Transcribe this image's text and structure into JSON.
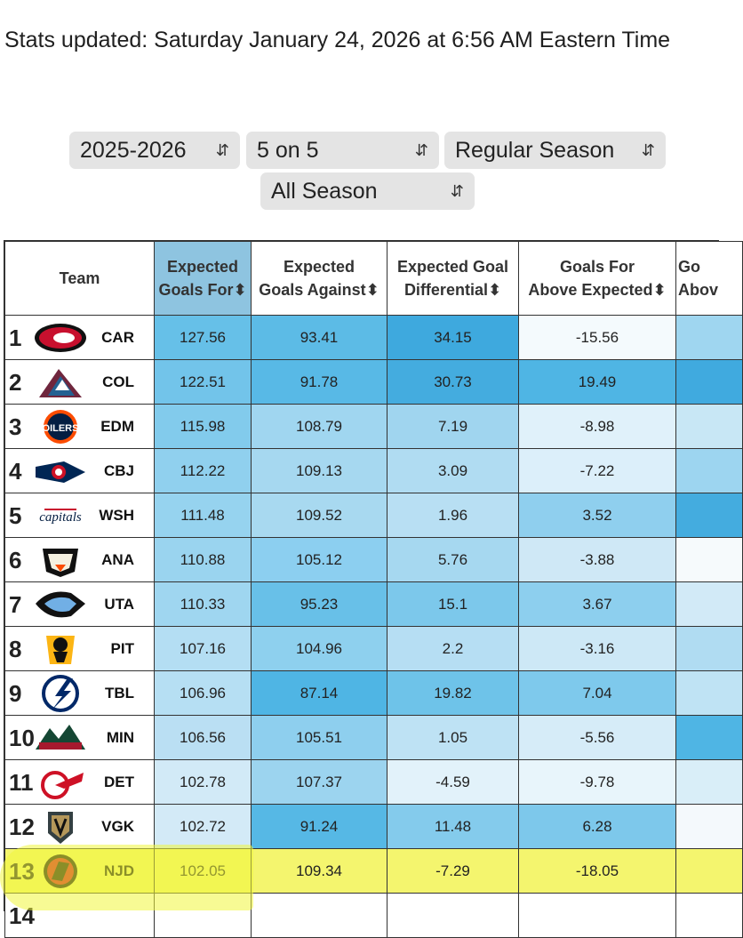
{
  "stats_updated": "Stats updated: Saturday January 24, 2026 at 6:56 AM Eastern Time",
  "filters": {
    "season": "2025-2026",
    "strength": "5 on 5",
    "season_type": "Regular Season",
    "span": "All Season",
    "chevron_icon": "up-down-chevron-icon"
  },
  "table": {
    "headers": [
      {
        "line1": "",
        "line2": "Team",
        "single": true
      },
      {
        "line1": "Expected",
        "line2": "Goals For⬍"
      },
      {
        "line1": "Expected",
        "line2": "Goals Against⬍"
      },
      {
        "line1": "Expected Goal",
        "line2": "Differential⬍"
      },
      {
        "line1": "Goals For",
        "line2": "Above Expected⬍"
      },
      {
        "line1": "Go",
        "line2": "Abov"
      }
    ],
    "rows": [
      {
        "rank": "1",
        "abbr": "CAR",
        "xgf": "127.56",
        "xga": "93.41",
        "xgd": "34.15",
        "gfax": "-15.56"
      },
      {
        "rank": "2",
        "abbr": "COL",
        "xgf": "122.51",
        "xga": "91.78",
        "xgd": "30.73",
        "gfax": "19.49"
      },
      {
        "rank": "3",
        "abbr": "EDM",
        "xgf": "115.98",
        "xga": "108.79",
        "xgd": "7.19",
        "gfax": "-8.98"
      },
      {
        "rank": "4",
        "abbr": "CBJ",
        "xgf": "112.22",
        "xga": "109.13",
        "xgd": "3.09",
        "gfax": "-7.22"
      },
      {
        "rank": "5",
        "abbr": "WSH",
        "xgf": "111.48",
        "xga": "109.52",
        "xgd": "1.96",
        "gfax": "3.52"
      },
      {
        "rank": "6",
        "abbr": "ANA",
        "xgf": "110.88",
        "xga": "105.12",
        "xgd": "5.76",
        "gfax": "-3.88"
      },
      {
        "rank": "7",
        "abbr": "UTA",
        "xgf": "110.33",
        "xga": "95.23",
        "xgd": "15.1",
        "gfax": "3.67"
      },
      {
        "rank": "8",
        "abbr": "PIT",
        "xgf": "107.16",
        "xga": "104.96",
        "xgd": "2.2",
        "gfax": "-3.16"
      },
      {
        "rank": "9",
        "abbr": "TBL",
        "xgf": "106.96",
        "xga": "87.14",
        "xgd": "19.82",
        "gfax": "7.04"
      },
      {
        "rank": "10",
        "abbr": "MIN",
        "xgf": "106.56",
        "xga": "105.51",
        "xgd": "1.05",
        "gfax": "-5.56"
      },
      {
        "rank": "11",
        "abbr": "DET",
        "xgf": "102.78",
        "xga": "107.37",
        "xgd": "-4.59",
        "gfax": "-9.78"
      },
      {
        "rank": "12",
        "abbr": "VGK",
        "xgf": "102.72",
        "xga": "91.24",
        "xgd": "11.48",
        "gfax": "6.28"
      },
      {
        "rank": "13",
        "abbr": "NJD",
        "xgf": "102.05",
        "xga": "109.34",
        "xgd": "-7.29",
        "gfax": "-18.05"
      },
      {
        "rank": "14",
        "abbr": "",
        "xgf": "",
        "xga": "",
        "xgd": "",
        "gfax": ""
      }
    ]
  },
  "colors": {
    "cells": {
      "xgf": [
        "#66c0e8",
        "#72c4ea",
        "#82cbec",
        "#90d0ee",
        "#96d3ef",
        "#9ad4ef",
        "#9fd6f0",
        "#b4def3",
        "#b6dff3",
        "#badff3",
        "#d2eaf7",
        "#d3eaf7",
        "#d8edf8",
        ""
      ],
      "xga": [
        "#5cbbe6",
        "#58b9e6",
        "#a0d6f0",
        "#a6d8f0",
        "#a8d9f0",
        "#8ccff0",
        "#68c0e8",
        "#8ed0ee",
        "#4fb5e4",
        "#8ecfee",
        "#9cd4ef",
        "#56b8e5",
        "#a6d8f0",
        ""
      ],
      "xgd": [
        "#3ea9de",
        "#44acdf",
        "#a0d5ef",
        "#b0dcf2",
        "#b8dff3",
        "#a6d8f0",
        "#7cc8eb",
        "#b6def3",
        "#6ec3e9",
        "#bee2f4",
        "#e2f2fa",
        "#84cbec",
        "#ecf6fb",
        ""
      ],
      "gfax": [
        "#f4fafd",
        "#4fb5e4",
        "#e0f1fa",
        "#dceffa",
        "#8fcfee",
        "#cfe8f6",
        "#8dcfee",
        "#cde8f6",
        "#7ec9ec",
        "#d6ecf8",
        "#e8f5fb",
        "#7dc8eb",
        "#ffffff",
        ""
      ],
      "col6": [
        "#9fd6f0",
        "#40aadf",
        "#c8e7f5",
        "#9dd5f0",
        "#44acdf",
        "#f6fafc",
        "#d2eaf7",
        "#b0dcf2",
        "#bfe3f4",
        "#4fb5e4",
        "#d9eef8",
        "#f4f9fc",
        "#a3d7f0",
        ""
      ]
    }
  }
}
